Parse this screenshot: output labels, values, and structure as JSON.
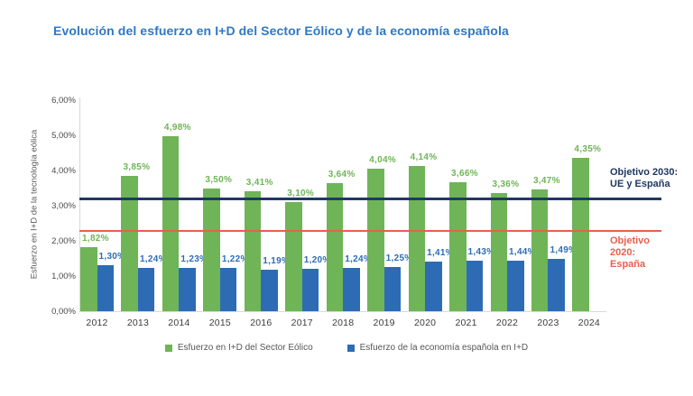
{
  "chart_data": {
    "type": "bar",
    "title": "Evolución del esfuerzo en I+D del Sector Eólico y de la economía española",
    "title_color": "#2e78c6",
    "xlabel": "",
    "ylabel": "Esfuerzo en I+D de la tecnología eólica",
    "ylim": [
      0,
      6
    ],
    "yticks": [
      "0,00%",
      "1,00%",
      "2,00%",
      "3,00%",
      "4,00%",
      "5,00%",
      "6,00%"
    ],
    "grid": false,
    "legend_position": "bottom",
    "categories": [
      "2012",
      "2013",
      "2014",
      "2015",
      "2016",
      "2017",
      "2018",
      "2019",
      "2020",
      "2021",
      "2022",
      "2023",
      "2024"
    ],
    "series": [
      {
        "name": "Esfuerzo en I+D del Sector Eólico",
        "color": "#6fb457",
        "values": [
          1.82,
          3.85,
          4.98,
          3.5,
          3.41,
          3.1,
          3.64,
          4.04,
          4.14,
          3.66,
          3.36,
          3.47,
          4.35
        ],
        "labels": [
          "1,82%",
          "3,85%",
          "4,98%",
          "3,50%",
          "3,41%",
          "3,10%",
          "3,64%",
          "4,04%",
          "4,14%",
          "3,66%",
          "3,36%",
          "3,47%",
          "4,35%"
        ]
      },
      {
        "name": "Esfuerzo de la economía española en I+D",
        "color": "#2d6cb5",
        "values": [
          1.3,
          1.24,
          1.23,
          1.22,
          1.19,
          1.2,
          1.24,
          1.25,
          1.41,
          1.43,
          1.44,
          1.49,
          null
        ],
        "labels": [
          "1,30%",
          "1,24%",
          "1,23%",
          "1,22%",
          "1,19%",
          "1,20%",
          "1,24%",
          "1,25%",
          "1,41%",
          "1,43%",
          "1,44%",
          "1,49%",
          null
        ]
      }
    ],
    "reference_lines": [
      {
        "id": "objetivo-2030",
        "label_lines": [
          "Objetivo 2030:",
          "UE y España"
        ],
        "value": 3.2,
        "color": "#1f3864"
      },
      {
        "id": "objetivo-2020",
        "label_lines": [
          "Objetivo",
          "2020:",
          "España"
        ],
        "value": 2.28,
        "color": "#e8604c"
      }
    ]
  }
}
